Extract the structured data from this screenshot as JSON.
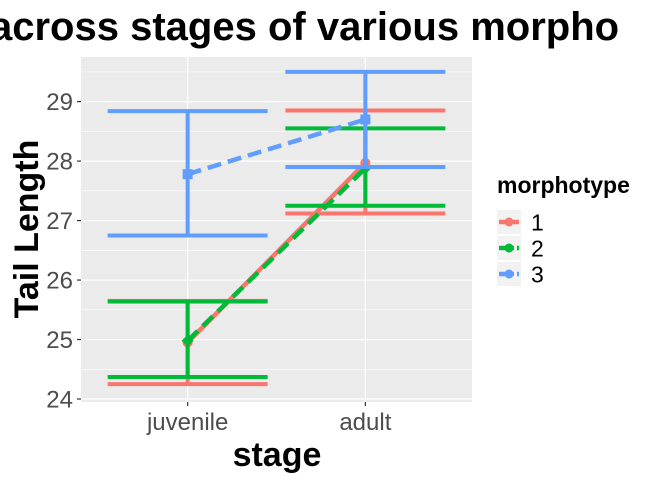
{
  "chart_data": {
    "type": "line",
    "title": "across stages of various morpho",
    "xlabel": "stage",
    "ylabel": "Tail Length",
    "categories": [
      "juvenile",
      "adult"
    ],
    "ylim": [
      23.95,
      29.75
    ],
    "yticks": [
      24,
      25,
      26,
      27,
      28,
      29
    ],
    "grid": true,
    "legend": {
      "title": "morphotype",
      "position": "right"
    },
    "series": [
      {
        "name": "1",
        "color": "#F8766D",
        "linestyle": "solid",
        "values": [
          24.95,
          27.97
        ],
        "lower": [
          24.25,
          27.12
        ],
        "upper": [
          25.65,
          28.85
        ]
      },
      {
        "name": "2",
        "color": "#00BA38",
        "linestyle": "dashed",
        "values": [
          24.98,
          27.88
        ],
        "lower": [
          24.37,
          27.25
        ],
        "upper": [
          25.64,
          28.55
        ]
      },
      {
        "name": "3",
        "color": "#619CFF",
        "linestyle": "dashed",
        "values": [
          27.78,
          28.7
        ],
        "lower": [
          26.75,
          27.9
        ],
        "upper": [
          28.84,
          29.5
        ]
      }
    ]
  }
}
